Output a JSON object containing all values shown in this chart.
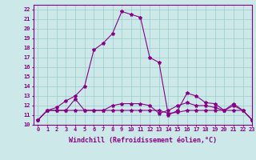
{
  "title": "",
  "xlabel": "Windchill (Refroidissement éolien,°C)",
  "ylabel": "",
  "background_color": "#cce8e8",
  "grid_color": "#99cccc",
  "line_color": "#880088",
  "xlim": [
    -0.5,
    23
  ],
  "ylim": [
    10,
    22.5
  ],
  "xticks": [
    0,
    1,
    2,
    3,
    4,
    5,
    6,
    7,
    8,
    9,
    10,
    11,
    12,
    13,
    14,
    15,
    16,
    17,
    18,
    19,
    20,
    21,
    22,
    23
  ],
  "yticks": [
    10,
    11,
    12,
    13,
    14,
    15,
    16,
    17,
    18,
    19,
    20,
    21,
    22
  ],
  "series1": [
    10.5,
    11.5,
    11.8,
    12.5,
    13.0,
    14.0,
    17.8,
    18.5,
    19.5,
    21.8,
    21.5,
    21.2,
    17.0,
    16.5,
    11.0,
    11.5,
    13.3,
    13.0,
    12.3,
    12.2,
    11.5,
    12.0,
    11.5,
    10.5
  ],
  "series2": [
    10.5,
    11.5,
    11.5,
    11.5,
    12.7,
    11.5,
    11.5,
    11.5,
    12.0,
    12.2,
    12.2,
    12.2,
    12.0,
    11.2,
    11.5,
    12.0,
    12.3,
    12.0,
    12.0,
    11.8,
    11.5,
    12.2,
    11.5,
    10.5
  ],
  "series3": [
    10.5,
    11.5,
    11.5,
    11.5,
    11.5,
    11.5,
    11.5,
    11.5,
    11.5,
    11.5,
    11.5,
    11.5,
    11.5,
    11.5,
    11.2,
    11.3,
    11.5,
    11.5,
    11.5,
    11.5,
    11.5,
    11.5,
    11.5,
    10.5
  ],
  "xlabel_fontsize": 6,
  "tick_fontsize": 5,
  "linewidth": 0.8,
  "markersize": 3
}
